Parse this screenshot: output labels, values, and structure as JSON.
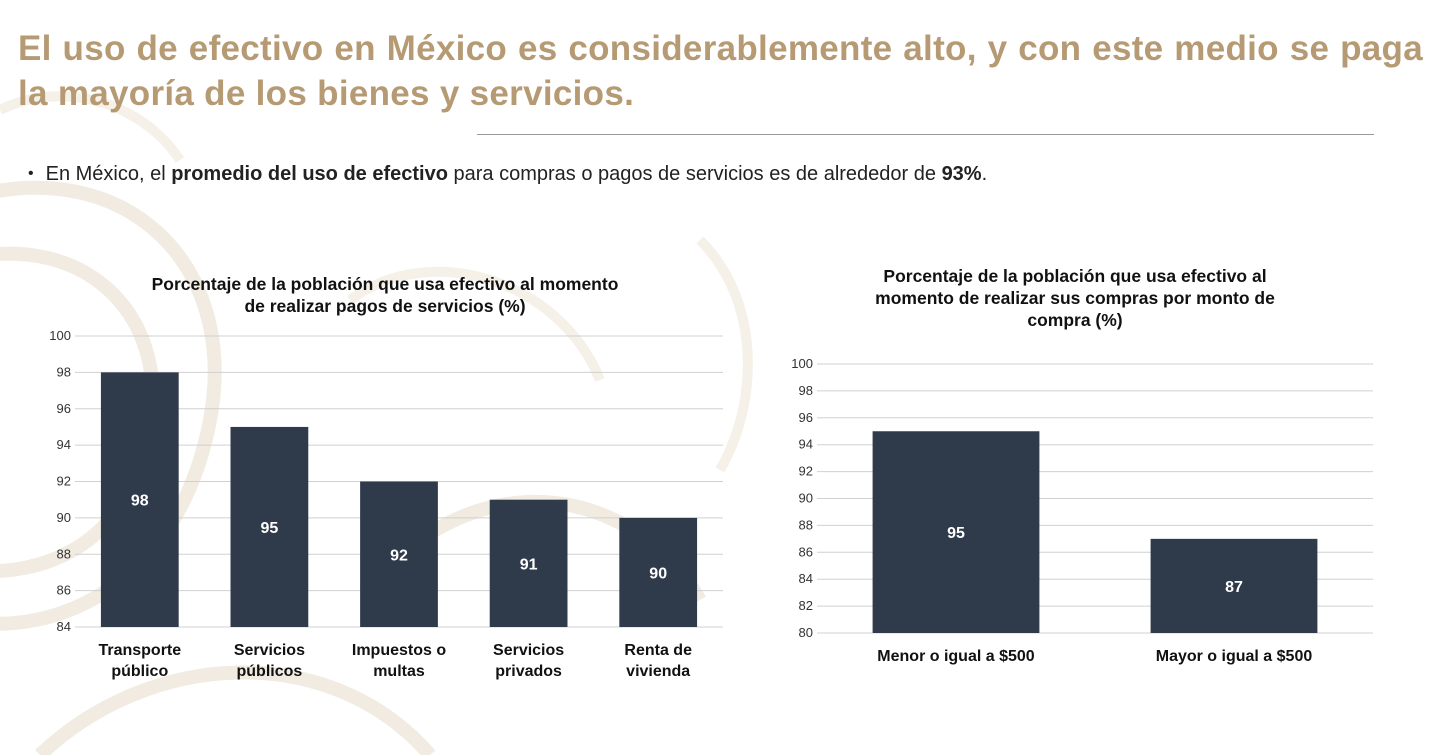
{
  "slide": {
    "title": "El uso de efectivo en México es considerablemente alto, y con este medio se paga la mayoría de los bienes y servicios.",
    "bullet": {
      "before": "En México, el ",
      "bold1": "promedio del uso de efectivo",
      "middle": " para compras o pagos de servicios es de alrededor de ",
      "bold2": "93%",
      "after": "."
    }
  },
  "colors": {
    "title": "#b59a73",
    "bar": "#2f3a4b",
    "grid": "#d0d0d0"
  },
  "chart_data": [
    {
      "type": "bar",
      "title_lines": [
        "Porcentaje de la población que usa efectivo al momento",
        "de realizar pagos de servicios (%)"
      ],
      "categories": [
        [
          "Transporte",
          "público"
        ],
        [
          "Servicios",
          "públicos"
        ],
        [
          "Impuestos o",
          "multas"
        ],
        [
          "Servicios",
          "privados"
        ],
        [
          "Renta de",
          "vivienda"
        ]
      ],
      "values": [
        98,
        95,
        92,
        91,
        90
      ],
      "ylim": [
        84,
        100
      ],
      "ytick_step": 2,
      "grid": true,
      "data_labels": true
    },
    {
      "type": "bar",
      "title_lines": [
        "Porcentaje de la población que usa efectivo al",
        "momento de realizar sus compras por monto de",
        "compra (%)"
      ],
      "categories": [
        [
          "Menor o igual a $500"
        ],
        [
          "Mayor o igual a $500"
        ]
      ],
      "values": [
        95,
        87
      ],
      "ylim": [
        80,
        100
      ],
      "ytick_step": 2,
      "grid": true,
      "data_labels": true
    }
  ]
}
